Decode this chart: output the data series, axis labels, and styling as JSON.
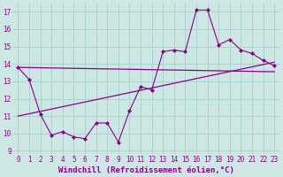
{
  "bg_color": "#cde8e4",
  "grid_color": "#aad4cc",
  "line_color": "#880088",
  "marker_color": "#880088",
  "xlabel": "Windchill (Refroidissement éolien,°C)",
  "xlim": [
    -0.5,
    23.5
  ],
  "ylim": [
    8.8,
    17.5
  ],
  "yticks": [
    9,
    10,
    11,
    12,
    13,
    14,
    15,
    16,
    17
  ],
  "xticks": [
    0,
    1,
    2,
    3,
    4,
    5,
    6,
    7,
    8,
    9,
    10,
    11,
    12,
    13,
    14,
    15,
    16,
    17,
    18,
    19,
    20,
    21,
    22,
    23
  ],
  "series1_x": [
    0,
    1,
    2,
    3,
    4,
    5,
    6,
    7,
    8,
    9,
    10,
    11,
    12,
    13,
    14,
    15,
    16,
    17,
    18,
    19,
    20,
    21,
    22,
    23
  ],
  "series1_y": [
    13.8,
    13.1,
    11.1,
    9.9,
    10.1,
    9.8,
    9.7,
    10.6,
    10.6,
    9.5,
    11.3,
    12.7,
    12.5,
    14.7,
    14.8,
    14.7,
    17.1,
    17.1,
    15.1,
    15.4,
    14.8,
    14.6,
    14.2,
    13.9
  ],
  "line2_x": [
    0,
    23
  ],
  "line2_y": [
    13.8,
    13.55
  ],
  "line3_x": [
    0,
    23
  ],
  "line3_y": [
    11.0,
    14.1
  ],
  "font_size_label": 6.5,
  "font_size_tick": 5.5
}
